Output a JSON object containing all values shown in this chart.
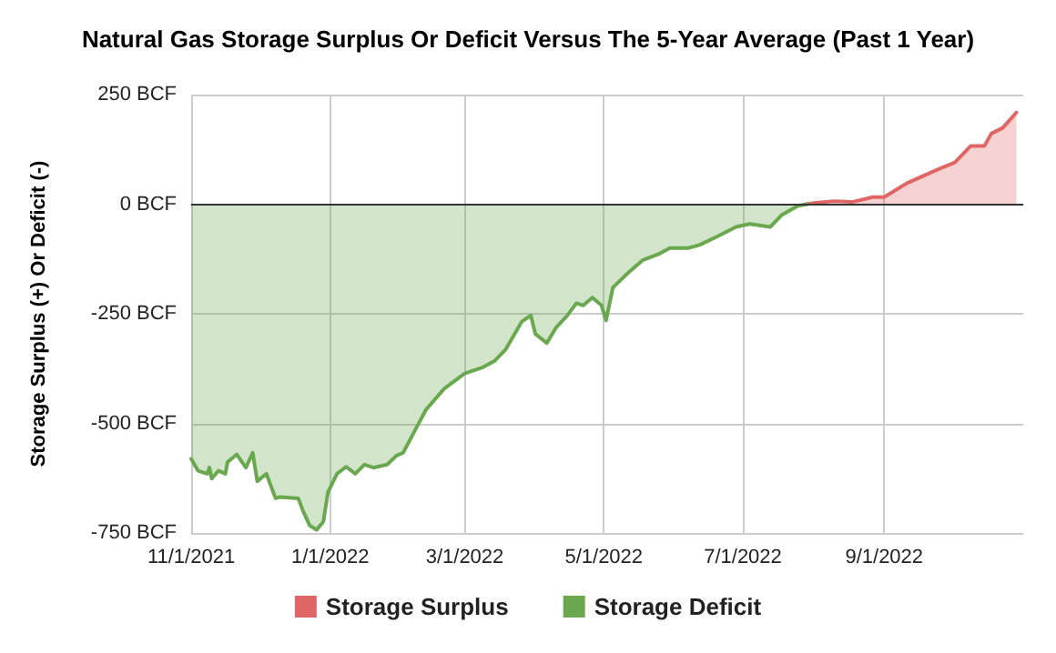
{
  "chart_data": {
    "type": "area",
    "title": "Natural Gas Storage Surplus Or Deficit Versus The 5-Year Average (Past 1 Year)",
    "ylabel": "Storage Surplus (+) Or Deficit (-)",
    "series": [
      {
        "name": "Storage Surplus",
        "color": "#e06666",
        "x": [
          "2022-07-29",
          "2022-08-02",
          "2022-08-10",
          "2022-08-18",
          "2022-08-27",
          "2022-09-01",
          "2022-09-11",
          "2022-09-24",
          "2022-10-02",
          "2022-10-09",
          "2022-10-15",
          "2022-10-18",
          "2022-10-23",
          "2022-10-29"
        ],
        "values": [
          0,
          3,
          7,
          5,
          16,
          16,
          48,
          78,
          95,
          133,
          133,
          161,
          174,
          209
        ]
      },
      {
        "name": "Storage Deficit",
        "color": "#6aa84f",
        "x": [
          "2021-11-01",
          "2021-11-04",
          "2021-11-08",
          "2021-11-09",
          "2021-11-10",
          "2021-11-13",
          "2021-11-16",
          "2021-11-17",
          "2021-11-21",
          "2021-11-25",
          "2021-11-28",
          "2021-11-30",
          "2021-12-04",
          "2021-12-08",
          "2021-12-10",
          "2021-12-18",
          "2021-12-20",
          "2021-12-23",
          "2021-12-26",
          "2021-12-29",
          "2021-12-31",
          "2022-01-04",
          "2022-01-08",
          "2022-01-12",
          "2022-01-16",
          "2022-01-20",
          "2022-01-26",
          "2022-01-30",
          "2022-02-02",
          "2022-02-07",
          "2022-02-12",
          "2022-02-20",
          "2022-03-01",
          "2022-03-09",
          "2022-03-14",
          "2022-03-19",
          "2022-03-26",
          "2022-03-30",
          "2022-04-01",
          "2022-04-06",
          "2022-04-10",
          "2022-04-15",
          "2022-04-19",
          "2022-04-22",
          "2022-04-26",
          "2022-04-30",
          "2022-05-02",
          "2022-05-05",
          "2022-05-12",
          "2022-05-18",
          "2022-05-25",
          "2022-05-30",
          "2022-06-07",
          "2022-06-12",
          "2022-06-20",
          "2022-06-28",
          "2022-07-04",
          "2022-07-13",
          "2022-07-18",
          "2022-07-25",
          "2022-07-29"
        ],
        "values": [
          -581,
          -608,
          -615,
          -601,
          -626,
          -608,
          -615,
          -588,
          -571,
          -601,
          -567,
          -632,
          -615,
          -671,
          -668,
          -671,
          -699,
          -733,
          -743,
          -724,
          -657,
          -615,
          -599,
          -615,
          -594,
          -601,
          -594,
          -574,
          -567,
          -518,
          -469,
          -421,
          -386,
          -372,
          -358,
          -331,
          -268,
          -254,
          -296,
          -317,
          -282,
          -254,
          -226,
          -231,
          -213,
          -231,
          -265,
          -190,
          -155,
          -128,
          -114,
          -100,
          -100,
          -93,
          -73,
          -52,
          -45,
          -52,
          -25,
          -4,
          0
        ]
      }
    ],
    "xlim": [
      "2021-11-01",
      "2022-11-01"
    ],
    "xticks": [
      {
        "value": "2021-11-01",
        "label": "11/1/2021"
      },
      {
        "value": "2022-01-01",
        "label": "1/1/2022"
      },
      {
        "value": "2022-03-01",
        "label": "3/1/2022"
      },
      {
        "value": "2022-05-01",
        "label": "5/1/2022"
      },
      {
        "value": "2022-07-01",
        "label": "7/1/2022"
      },
      {
        "value": "2022-09-01",
        "label": "9/1/2022"
      }
    ],
    "ylim": [
      -750,
      250
    ],
    "yticks": [
      {
        "value": -750,
        "label": "-750 BCF"
      },
      {
        "value": -500,
        "label": "-500 BCF"
      },
      {
        "value": -250,
        "label": "-250 BCF"
      },
      {
        "value": 0,
        "label": "0 BCF"
      },
      {
        "value": 250,
        "label": "250 BCF"
      }
    ],
    "ref_lines": [
      {
        "axis": "y",
        "value": 0,
        "color": "#333333"
      }
    ],
    "grid": true,
    "legend": "bottom",
    "marker": "none",
    "line_style": "solid"
  }
}
